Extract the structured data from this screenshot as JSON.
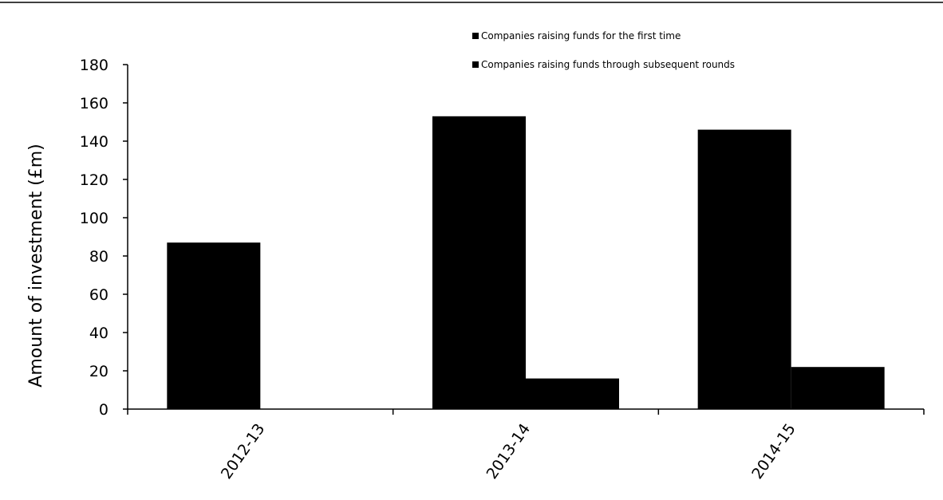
{
  "chart_data": {
    "type": "bar",
    "categories": [
      "2012-13",
      "2013-14",
      "2014-15"
    ],
    "series": [
      {
        "name": "Companies raising funds for the first time",
        "values": [
          87,
          153,
          146
        ]
      },
      {
        "name": "Companies raising funds through subsequent rounds",
        "values": [
          0,
          16,
          22
        ]
      }
    ],
    "title": "",
    "xlabel": "",
    "ylabel": "Amount of investment (£m)",
    "ylim": [
      0,
      180
    ],
    "yticks": [
      0,
      20,
      40,
      60,
      80,
      100,
      120,
      140,
      160,
      180
    ],
    "grid": false,
    "legend_position": "top-right",
    "colors": {
      "bars": "#000000",
      "axis": "#000000",
      "background": "#ffffff"
    }
  }
}
